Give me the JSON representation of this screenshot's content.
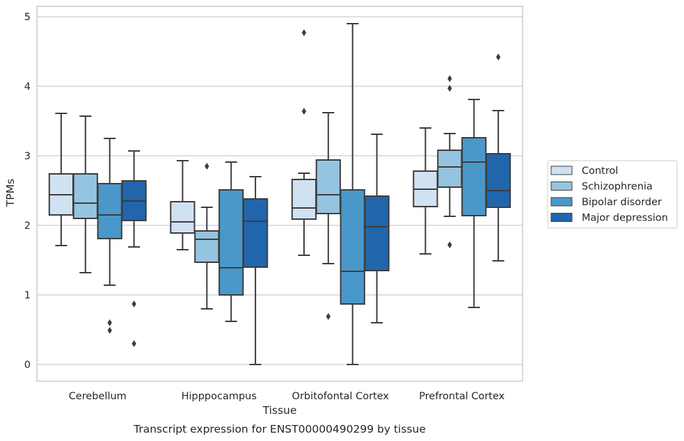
{
  "chart_data": {
    "type": "boxplot",
    "caption": "Transcript expression for ENST00000490299 by tissue",
    "xlabel": "Tissue",
    "ylabel": "TPMs",
    "ylim": [
      -0.24,
      5.15
    ],
    "yticks": [
      "0",
      "1",
      "2",
      "3",
      "4",
      "5"
    ],
    "grid": true,
    "legend_position": "right",
    "categories": [
      "Cerebellum",
      "Hipppocampus",
      "Orbitofontal Cortex",
      "Prefrontal Cortex"
    ],
    "series": [
      {
        "name": "Control",
        "color": "#d0e1f2",
        "boxes": [
          {
            "whislo": 1.71,
            "q1": 2.15,
            "med": 2.44,
            "q3": 2.74,
            "whishi": 3.61,
            "fliers": []
          },
          {
            "whislo": 1.65,
            "q1": 1.89,
            "med": 2.05,
            "q3": 2.34,
            "whishi": 2.93,
            "fliers": []
          },
          {
            "whislo": 1.57,
            "q1": 2.09,
            "med": 2.25,
            "q3": 2.66,
            "whishi": 2.75,
            "fliers": [
              3.64,
              4.77
            ]
          },
          {
            "whislo": 1.59,
            "q1": 2.27,
            "med": 2.52,
            "q3": 2.78,
            "whishi": 3.4,
            "fliers": []
          }
        ]
      },
      {
        "name": "Schizophrenia",
        "color": "#94c4df",
        "boxes": [
          {
            "whislo": 1.32,
            "q1": 2.1,
            "med": 2.32,
            "q3": 2.74,
            "whishi": 3.57,
            "fliers": []
          },
          {
            "whislo": 0.8,
            "q1": 1.47,
            "med": 1.8,
            "q3": 1.92,
            "whishi": 2.26,
            "fliers": [
              2.85
            ]
          },
          {
            "whislo": 1.45,
            "q1": 2.17,
            "med": 2.44,
            "q3": 2.94,
            "whishi": 3.62,
            "fliers": [
              0.69
            ]
          },
          {
            "whislo": 2.13,
            "q1": 2.55,
            "med": 2.84,
            "q3": 3.08,
            "whishi": 3.32,
            "fliers": [
              1.72,
              3.97,
              4.11
            ]
          }
        ]
      },
      {
        "name": "Bipolar disorder",
        "color": "#4a98c9",
        "boxes": [
          {
            "whislo": 1.14,
            "q1": 1.81,
            "med": 2.15,
            "q3": 2.6,
            "whishi": 3.25,
            "fliers": [
              0.49,
              0.6
            ]
          },
          {
            "whislo": 0.62,
            "q1": 1.0,
            "med": 1.39,
            "q3": 2.51,
            "whishi": 2.91,
            "fliers": []
          },
          {
            "whislo": 0.0,
            "q1": 0.87,
            "med": 1.34,
            "q3": 2.51,
            "whishi": 4.9,
            "fliers": []
          },
          {
            "whislo": 0.82,
            "q1": 2.14,
            "med": 2.91,
            "q3": 3.26,
            "whishi": 3.81,
            "fliers": []
          }
        ]
      },
      {
        "name": "Major depression",
        "color": "#2166ac",
        "boxes": [
          {
            "whislo": 1.69,
            "q1": 2.07,
            "med": 2.35,
            "q3": 2.64,
            "whishi": 3.07,
            "fliers": [
              0.3,
              0.87
            ]
          },
          {
            "whislo": 0.0,
            "q1": 1.4,
            "med": 2.06,
            "q3": 2.38,
            "whishi": 2.7,
            "fliers": []
          },
          {
            "whislo": 0.6,
            "q1": 1.35,
            "med": 1.98,
            "q3": 2.42,
            "whishi": 3.31,
            "fliers": []
          },
          {
            "whislo": 1.49,
            "q1": 2.26,
            "med": 2.5,
            "q3": 3.03,
            "whishi": 3.65,
            "fliers": [
              4.42
            ]
          }
        ]
      }
    ]
  }
}
